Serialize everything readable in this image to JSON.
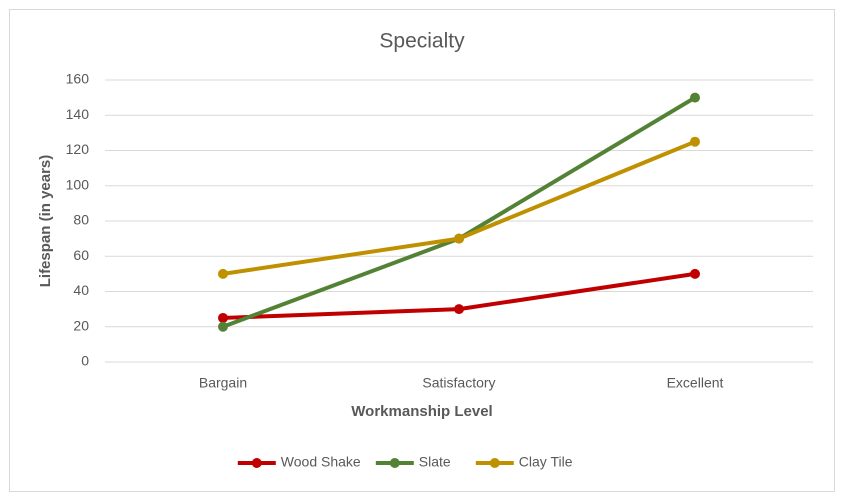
{
  "chart_data": {
    "type": "line",
    "title": "Specialty",
    "x_label": "Workmanship Level",
    "y_label": "Lifespan (in years)",
    "categories": [
      "Bargain",
      "Satisfactory",
      "Excellent"
    ],
    "series": [
      {
        "name": "Wood Shake",
        "color": "#c00000",
        "values": [
          25,
          30,
          50
        ]
      },
      {
        "name": "Slate",
        "color": "#548235",
        "values": [
          20,
          70,
          150
        ]
      },
      {
        "name": "Clay Tile",
        "color": "#bf9000",
        "values": [
          50,
          70,
          125
        ]
      }
    ],
    "ylim": [
      0,
      160
    ],
    "yticks": [
      0,
      20,
      40,
      60,
      80,
      100,
      120,
      140,
      160
    ],
    "grid": true,
    "legend": "bottom"
  }
}
